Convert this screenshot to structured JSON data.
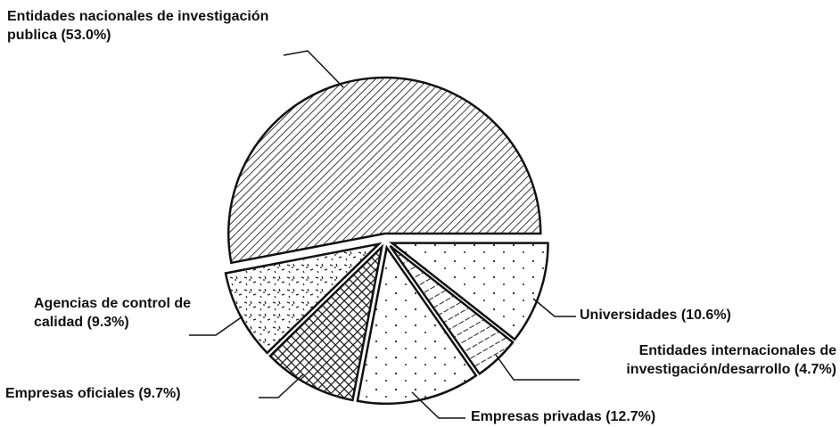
{
  "chart_data": {
    "type": "pie",
    "categories": [
      "Entidades nacionales de investigación publica",
      "Universidades",
      "Entidades internacionales de investigación/desarrollo",
      "Empresas privadas",
      "Empresas oficiales",
      "Agencias de control de calidad"
    ],
    "values": [
      53.0,
      10.6,
      4.7,
      12.7,
      9.7,
      9.3
    ],
    "value_labels": [
      "(53.0%)",
      "(10.6%)",
      "(4.7%)",
      "(12.7%)",
      "(9.7%)",
      "(9.3%)"
    ],
    "patterns": [
      "hatch",
      "dots",
      "vlines",
      "dots",
      "crosshatch",
      "speckle"
    ],
    "exploded": true
  }
}
